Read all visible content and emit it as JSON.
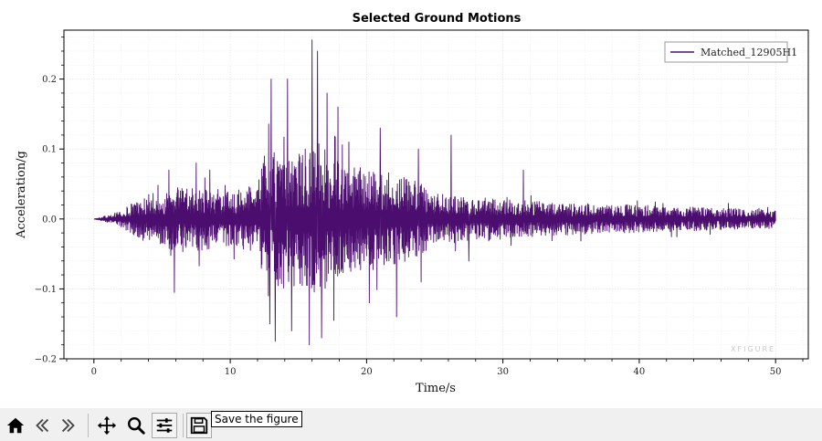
{
  "chart_data": {
    "type": "line",
    "title": "Selected Ground Motions",
    "xlabel": "Time/s",
    "ylabel": "Acceleration/g",
    "xlim": [
      -2.2,
      52.4
    ],
    "ylim": [
      -0.2,
      0.27
    ],
    "xticks": [
      0,
      10,
      20,
      30,
      40,
      50
    ],
    "xtick_labels": [
      "0",
      "10",
      "20",
      "30",
      "40",
      "50"
    ],
    "yticks": [
      -0.2,
      -0.1,
      0.0,
      0.1,
      0.2
    ],
    "ytick_labels": [
      "−0.2",
      "−0.1",
      "0.0",
      "0.1",
      "0.2"
    ],
    "grid": true,
    "legend_position": "top-right",
    "series": [
      {
        "name": "Matched_12905H1",
        "color": "#4b0e6e",
        "x_range": [
          0,
          50
        ],
        "envelope_t": [
          0,
          1,
          2,
          3,
          4,
          5,
          6,
          7,
          8,
          9,
          10,
          11,
          12,
          12.5,
          13,
          14,
          15,
          16,
          17,
          18,
          19,
          20,
          21,
          22,
          23,
          24,
          25,
          26,
          28,
          30,
          33,
          36,
          40,
          45,
          50
        ],
        "envelope_amp": [
          0.0,
          0.005,
          0.012,
          0.025,
          0.035,
          0.04,
          0.045,
          0.045,
          0.045,
          0.04,
          0.04,
          0.045,
          0.05,
          0.09,
          0.1,
          0.1,
          0.1,
          0.11,
          0.1,
          0.08,
          0.075,
          0.075,
          0.07,
          0.065,
          0.06,
          0.05,
          0.04,
          0.035,
          0.03,
          0.03,
          0.025,
          0.022,
          0.02,
          0.016,
          0.013
        ],
        "peaks": [
          {
            "t": 5.5,
            "a": 0.07
          },
          {
            "t": 5.9,
            "a": -0.105
          },
          {
            "t": 7.5,
            "a": 0.08
          },
          {
            "t": 8.5,
            "a": 0.07
          },
          {
            "t": 12.5,
            "a": 0.09
          },
          {
            "t": 12.8,
            "a": -0.11
          },
          {
            "t": 12.9,
            "a": -0.15
          },
          {
            "t": 13.0,
            "a": 0.2
          },
          {
            "t": 13.3,
            "a": -0.175
          },
          {
            "t": 14.2,
            "a": 0.2
          },
          {
            "t": 14.5,
            "a": -0.16
          },
          {
            "t": 15.5,
            "a": 0.1
          },
          {
            "t": 15.8,
            "a": -0.18
          },
          {
            "t": 16.0,
            "a": 0.256
          },
          {
            "t": 16.4,
            "a": 0.24
          },
          {
            "t": 16.7,
            "a": -0.17
          },
          {
            "t": 17.1,
            "a": 0.18
          },
          {
            "t": 17.6,
            "a": -0.145
          },
          {
            "t": 17.9,
            "a": 0.16
          },
          {
            "t": 18.7,
            "a": 0.11
          },
          {
            "t": 20.2,
            "a": -0.12
          },
          {
            "t": 21.0,
            "a": 0.13
          },
          {
            "t": 22.2,
            "a": -0.14
          },
          {
            "t": 23.8,
            "a": 0.1
          },
          {
            "t": 24.0,
            "a": -0.09
          },
          {
            "t": 26.2,
            "a": 0.12
          },
          {
            "t": 27.5,
            "a": -0.06
          },
          {
            "t": 31.5,
            "a": 0.07
          }
        ]
      }
    ]
  },
  "watermark": "XFIGURE",
  "toolbar": {
    "home": {
      "icon": "home-icon"
    },
    "back": {
      "icon": "back-arrow-icon"
    },
    "forward": {
      "icon": "forward-arrow-icon"
    },
    "pan": {
      "icon": "pan-icon"
    },
    "zoom": {
      "icon": "zoom-icon"
    },
    "configure": {
      "icon": "sliders-icon"
    },
    "save": {
      "icon": "save-icon",
      "tooltip": "Save the figure"
    }
  }
}
